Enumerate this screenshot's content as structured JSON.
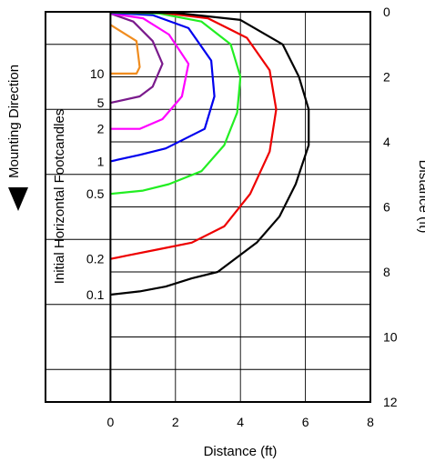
{
  "chart_data": {
    "type": "line",
    "title": "",
    "xlabel": "Distance (ft)",
    "ylabel": "Distance (ft)",
    "left_label": "Initial Horizontal Footcandles",
    "direction_label": "Mounting Direction",
    "xlim": [
      -2,
      8
    ],
    "ylim": [
      0,
      12
    ],
    "y_inverted": true,
    "grid": true,
    "x_ticks": [
      0,
      2,
      4,
      6,
      8
    ],
    "y_ticks": [
      0,
      2,
      4,
      6,
      8,
      10,
      12
    ],
    "series": [
      {
        "name": "10",
        "color": "#f08c1e",
        "points": [
          [
            0,
            0.4
          ],
          [
            0.8,
            0.9
          ],
          [
            0.9,
            1.7
          ],
          [
            0.8,
            1.9
          ],
          [
            0,
            1.9
          ]
        ]
      },
      {
        "name": "5",
        "color": "#7a1a8c",
        "points": [
          [
            0,
            0.05
          ],
          [
            0.7,
            0.3
          ],
          [
            1.3,
            0.9
          ],
          [
            1.6,
            1.6
          ],
          [
            1.3,
            2.3
          ],
          [
            0.9,
            2.6
          ],
          [
            0,
            2.8
          ]
        ]
      },
      {
        "name": "2",
        "color": "#ff00ff",
        "points": [
          [
            0,
            0.05
          ],
          [
            1.0,
            0.2
          ],
          [
            1.8,
            0.7
          ],
          [
            2.4,
            1.6
          ],
          [
            2.2,
            2.6
          ],
          [
            1.6,
            3.3
          ],
          [
            0.9,
            3.6
          ],
          [
            0,
            3.6
          ]
        ]
      },
      {
        "name": "1",
        "color": "#0000ee",
        "points": [
          [
            0,
            0.03
          ],
          [
            1.3,
            0.1
          ],
          [
            2.4,
            0.5
          ],
          [
            3.1,
            1.5
          ],
          [
            3.2,
            2.6
          ],
          [
            2.9,
            3.6
          ],
          [
            1.7,
            4.2
          ],
          [
            0.9,
            4.4
          ],
          [
            0,
            4.6
          ]
        ]
      },
      {
        "name": "0.5",
        "color": "#22ee22",
        "points": [
          [
            0,
            0.02
          ],
          [
            1.5,
            0.05
          ],
          [
            2.8,
            0.3
          ],
          [
            3.7,
            1.0
          ],
          [
            4.0,
            2.0
          ],
          [
            3.9,
            3.1
          ],
          [
            3.5,
            4.1
          ],
          [
            2.8,
            4.9
          ],
          [
            1.8,
            5.3
          ],
          [
            1.0,
            5.5
          ],
          [
            0,
            5.6
          ]
        ]
      },
      {
        "name": "0.2",
        "color": "#ee0000",
        "points": [
          [
            0,
            0.01
          ],
          [
            1.5,
            0.02
          ],
          [
            3.0,
            0.2
          ],
          [
            4.2,
            0.8
          ],
          [
            4.9,
            1.8
          ],
          [
            5.1,
            3.0
          ],
          [
            4.9,
            4.3
          ],
          [
            4.3,
            5.6
          ],
          [
            3.5,
            6.6
          ],
          [
            2.5,
            7.1
          ],
          [
            1.5,
            7.3
          ],
          [
            0.5,
            7.5
          ],
          [
            0,
            7.6
          ]
        ]
      },
      {
        "name": "0.1",
        "color": "#000000",
        "points": [
          [
            0,
            0.01
          ],
          [
            2.0,
            0.03
          ],
          [
            4.0,
            0.25
          ],
          [
            5.3,
            1.0
          ],
          [
            5.8,
            2.0
          ],
          [
            6.1,
            3.0
          ],
          [
            6.1,
            4.1
          ],
          [
            5.7,
            5.3
          ],
          [
            5.2,
            6.3
          ],
          [
            4.5,
            7.1
          ],
          [
            3.3,
            8.0
          ],
          [
            2.5,
            8.2
          ],
          [
            1.7,
            8.45
          ],
          [
            0.9,
            8.6
          ],
          [
            0,
            8.7
          ]
        ]
      }
    ]
  }
}
